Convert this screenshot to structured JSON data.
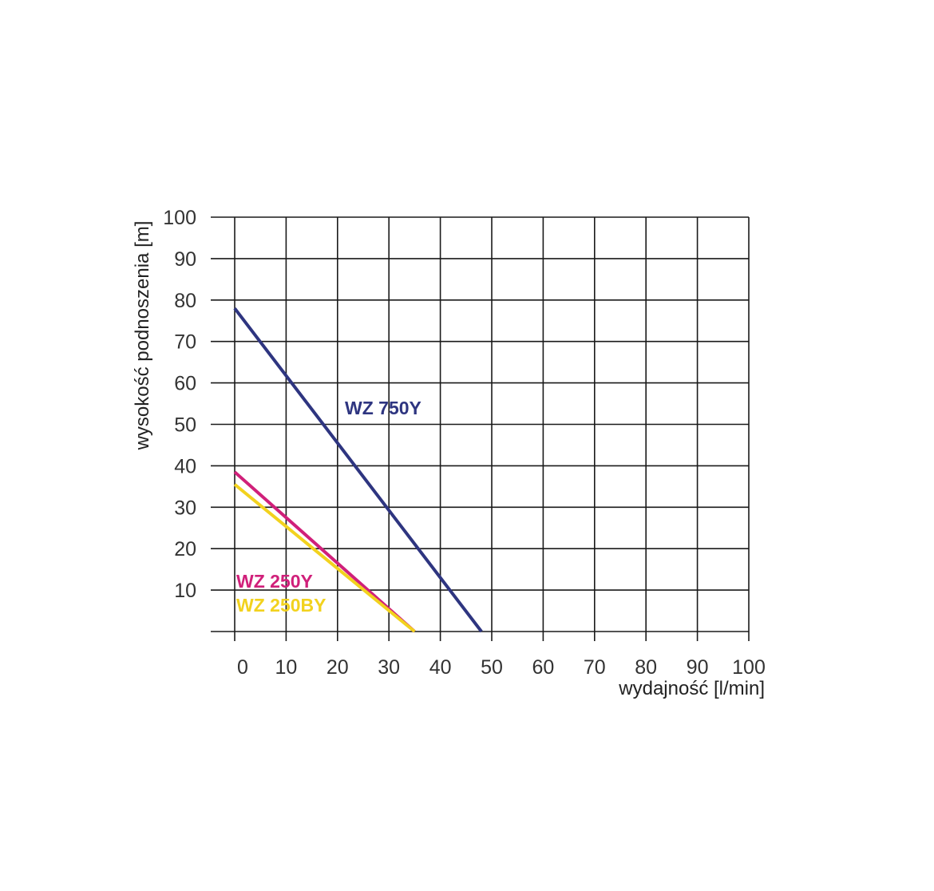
{
  "chart_data": {
    "type": "line",
    "xlabel": "wydajność [l/min]",
    "ylabel": "wysokość podnoszenia [m]",
    "xlim": [
      0,
      100
    ],
    "ylim": [
      0,
      100
    ],
    "x_ticks": [
      "0",
      "10",
      "20",
      "30",
      "40",
      "50",
      "60",
      "70",
      "80",
      "90",
      "100"
    ],
    "y_ticks": [
      "10",
      "20",
      "30",
      "40",
      "50",
      "60",
      "70",
      "80",
      "90",
      "100"
    ],
    "grid": true,
    "legend": "none",
    "series": [
      {
        "name": "WZ 750Y",
        "color": "#2e3580",
        "x": [
          0,
          48
        ],
        "y": [
          78,
          0
        ]
      },
      {
        "name": "WZ 250Y",
        "color": "#d0207a",
        "x": [
          0,
          35
        ],
        "y": [
          38.5,
          0
        ]
      },
      {
        "name": "WZ 250BY",
        "color": "#f2d21e",
        "x": [
          0,
          35
        ],
        "y": [
          35.5,
          0
        ]
      }
    ]
  }
}
